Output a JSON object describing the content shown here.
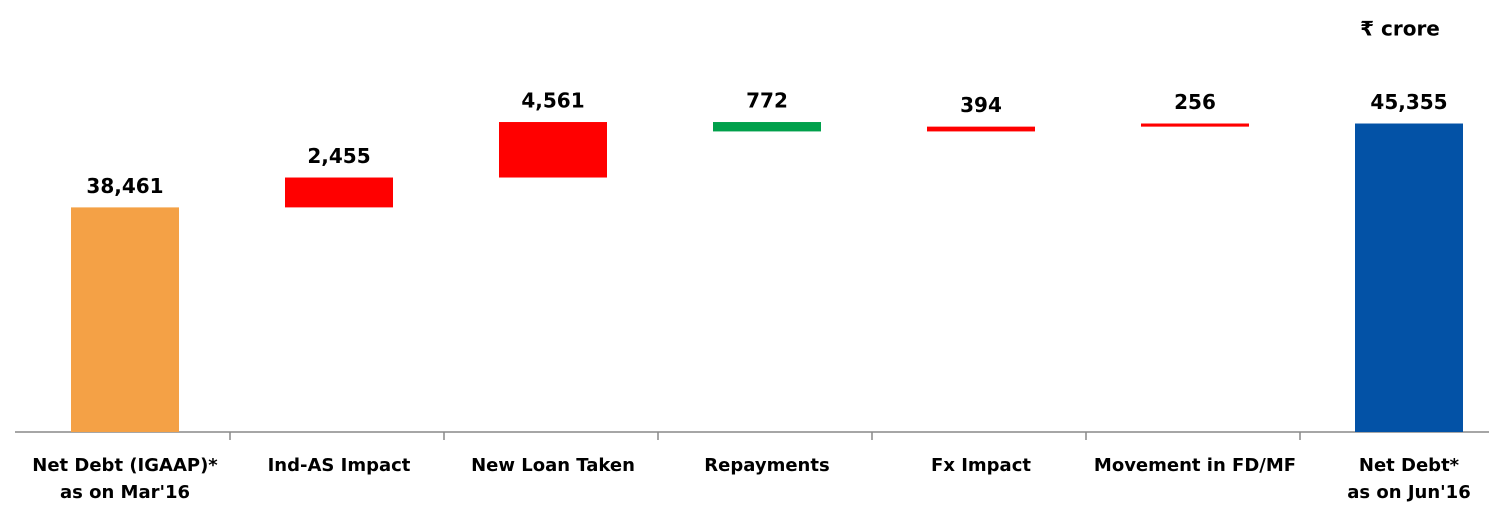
{
  "chart_data": {
    "type": "waterfall",
    "unit_label": "₹ crore",
    "categories": [
      "Net Debt (IGAAP)*\nas on Mar'16",
      "Ind-AS Impact",
      "New Loan Taken",
      "Repayments",
      "Fx Impact",
      "Movement in FD/MF",
      "Net Debt*\nas on Jun'16"
    ],
    "values": [
      38461,
      2455,
      4561,
      772,
      394,
      256,
      45355
    ],
    "value_labels": [
      "38,461",
      "2,455",
      "4,561",
      "772",
      "394",
      "256",
      "45,355"
    ],
    "kinds": [
      "total",
      "increase",
      "increase",
      "decrease",
      "increase",
      "increase",
      "total"
    ],
    "colors": [
      "#f4a146",
      "#ff0000",
      "#ff0000",
      "#00a04b",
      "#ff0000",
      "#ff0000",
      "#0352a6"
    ],
    "ylim": [
      20000,
      50000
    ]
  }
}
